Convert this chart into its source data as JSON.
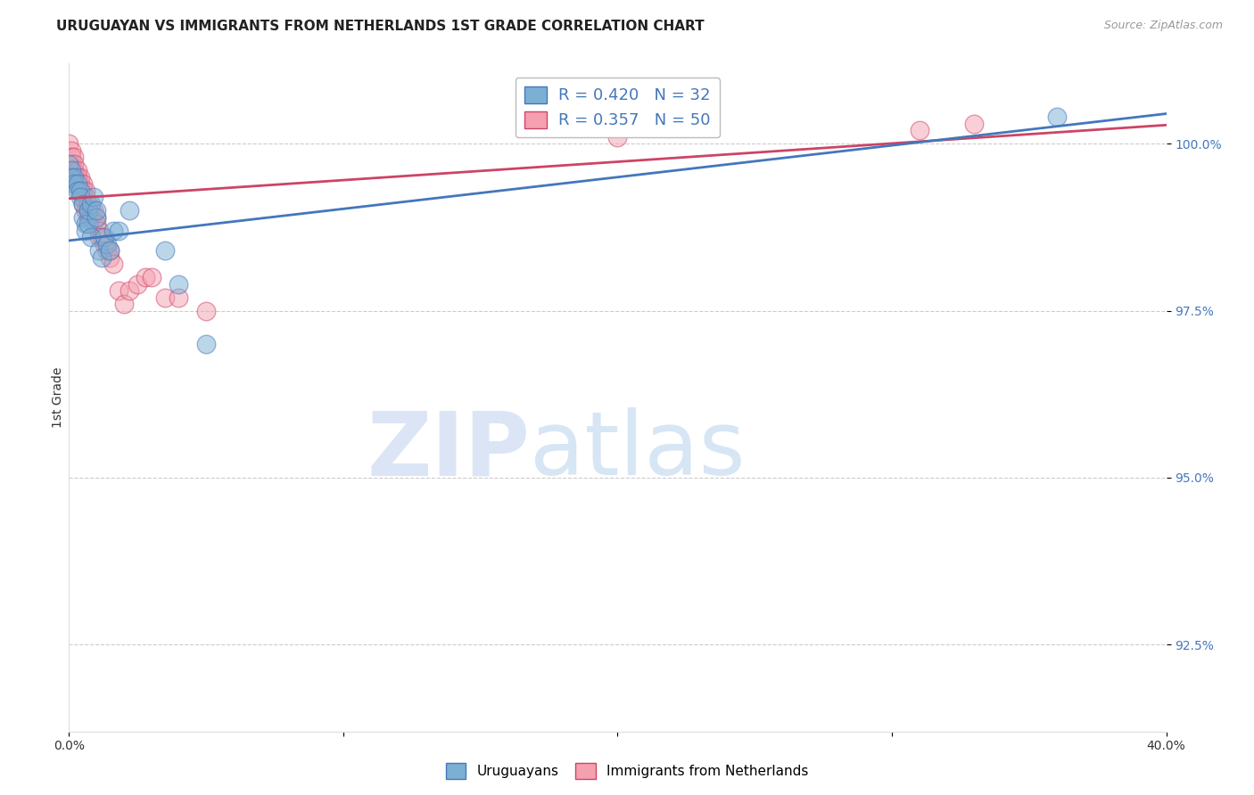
{
  "title": "URUGUAYAN VS IMMIGRANTS FROM NETHERLANDS 1ST GRADE CORRELATION CHART",
  "source": "Source: ZipAtlas.com",
  "ylabel": "1st Grade",
  "yticks": [
    92.5,
    95.0,
    97.5,
    100.0
  ],
  "ytick_labels": [
    "92.5%",
    "95.0%",
    "97.5%",
    "100.0%"
  ],
  "xlim": [
    0.0,
    0.4
  ],
  "ylim": [
    91.2,
    101.2
  ],
  "blue_color": "#7BAFD4",
  "pink_color": "#F4A0B0",
  "blue_line_color": "#4477BB",
  "pink_line_color": "#CC4466",
  "blue_R": 0.42,
  "blue_N": 32,
  "pink_R": 0.357,
  "pink_N": 50,
  "blue_scatter_x": [
    0.0,
    0.001,
    0.001,
    0.002,
    0.002,
    0.003,
    0.003,
    0.004,
    0.004,
    0.005,
    0.005,
    0.006,
    0.006,
    0.007,
    0.007,
    0.008,
    0.008,
    0.009,
    0.01,
    0.01,
    0.011,
    0.012,
    0.013,
    0.014,
    0.015,
    0.016,
    0.018,
    0.022,
    0.035,
    0.04,
    0.05,
    0.36
  ],
  "blue_scatter_y": [
    99.7,
    99.6,
    99.5,
    99.5,
    99.4,
    99.4,
    99.3,
    99.3,
    99.2,
    99.1,
    98.9,
    98.8,
    98.7,
    98.8,
    99.0,
    99.1,
    98.6,
    99.2,
    98.9,
    99.0,
    98.4,
    98.3,
    98.6,
    98.5,
    98.4,
    98.7,
    98.7,
    99.0,
    98.4,
    97.9,
    97.0,
    100.4
  ],
  "pink_scatter_x": [
    0.0,
    0.001,
    0.001,
    0.001,
    0.002,
    0.002,
    0.002,
    0.003,
    0.003,
    0.003,
    0.003,
    0.004,
    0.004,
    0.004,
    0.005,
    0.005,
    0.005,
    0.005,
    0.006,
    0.006,
    0.006,
    0.007,
    0.007,
    0.007,
    0.008,
    0.008,
    0.009,
    0.009,
    0.01,
    0.01,
    0.011,
    0.011,
    0.012,
    0.013,
    0.014,
    0.015,
    0.015,
    0.016,
    0.018,
    0.02,
    0.022,
    0.025,
    0.028,
    0.03,
    0.035,
    0.04,
    0.05,
    0.2,
    0.31,
    0.33
  ],
  "pink_scatter_y": [
    100.0,
    99.9,
    99.8,
    99.7,
    99.8,
    99.7,
    99.6,
    99.6,
    99.5,
    99.5,
    99.4,
    99.5,
    99.4,
    99.3,
    99.4,
    99.3,
    99.2,
    99.1,
    99.3,
    99.2,
    99.0,
    99.1,
    99.0,
    98.9,
    99.0,
    98.9,
    99.0,
    98.8,
    98.9,
    98.8,
    98.7,
    98.6,
    98.6,
    98.5,
    98.4,
    98.3,
    98.4,
    98.2,
    97.8,
    97.6,
    97.8,
    97.9,
    98.0,
    98.0,
    97.7,
    97.7,
    97.5,
    100.1,
    100.2,
    100.3
  ],
  "watermark_zip": "ZIP",
  "watermark_atlas": "atlas",
  "grid_color": "#CCCCCC",
  "bg_color": "#FFFFFF",
  "xtick_positions": [
    0.0,
    0.1,
    0.2,
    0.3,
    0.4
  ],
  "xtick_labels": [
    "0.0%",
    "",
    "",
    "",
    "40.0%"
  ],
  "title_fontsize": 11,
  "axis_tick_fontsize": 10
}
